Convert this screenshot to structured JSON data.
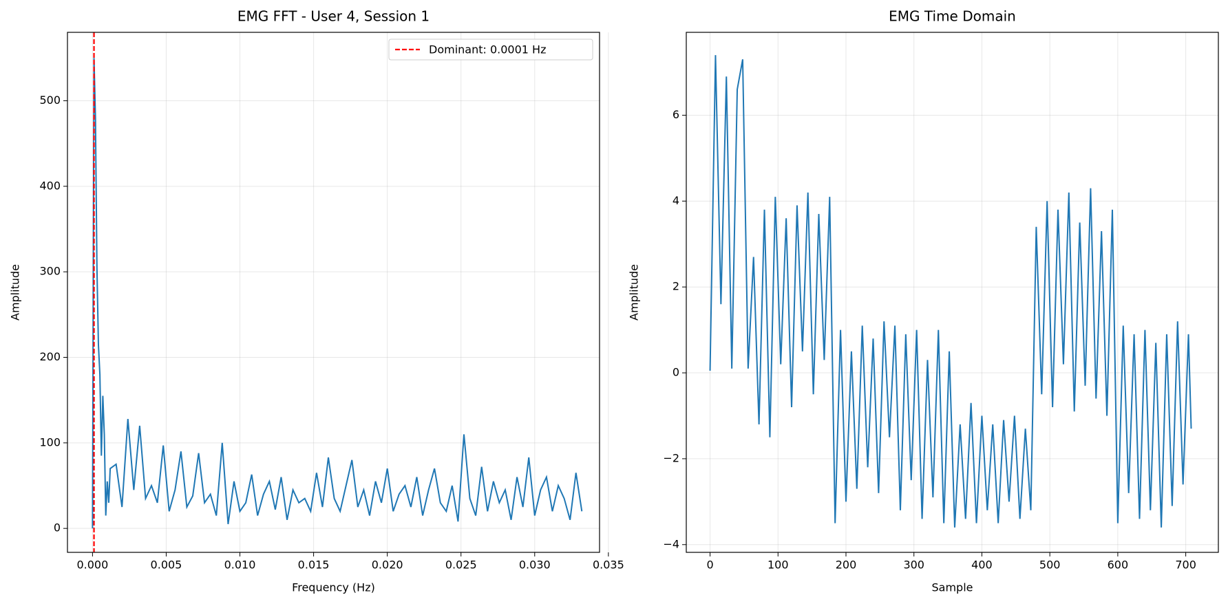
{
  "chart_data": [
    {
      "type": "line",
      "title": "EMG FFT - User 4, Session 1",
      "xlabel": "Frequency (Hz)",
      "ylabel": "Amplitude",
      "x": [
        0,
        0.0001,
        0.0002,
        0.0003,
        0.0004,
        0.0005,
        0.0006,
        0.0007,
        0.0008,
        0.0009,
        0.001,
        0.0011,
        0.0012,
        0.0016,
        0.002,
        0.0024,
        0.0028,
        0.0032,
        0.0036,
        0.004,
        0.0044,
        0.0048,
        0.0052,
        0.0056,
        0.006,
        0.0064,
        0.0068,
        0.0072,
        0.0076,
        0.008,
        0.0084,
        0.0088,
        0.0092,
        0.0096,
        0.01,
        0.0104,
        0.0108,
        0.0112,
        0.0116,
        0.012,
        0.0124,
        0.0128,
        0.0132,
        0.0136,
        0.014,
        0.0144,
        0.0148,
        0.0152,
        0.0156,
        0.016,
        0.0164,
        0.0168,
        0.0172,
        0.0176,
        0.018,
        0.0184,
        0.0188,
        0.0192,
        0.0196,
        0.02,
        0.0204,
        0.0208,
        0.0212,
        0.0216,
        0.022,
        0.0224,
        0.0228,
        0.0232,
        0.0236,
        0.024,
        0.0244,
        0.0248,
        0.0252,
        0.0256,
        0.026,
        0.0264,
        0.0268,
        0.0272,
        0.0276,
        0.028,
        0.0284,
        0.0288,
        0.0292,
        0.0296,
        0.03,
        0.0304,
        0.0308,
        0.0312,
        0.0316,
        0.032,
        0.0324,
        0.0328,
        0.0332
      ],
      "series": [
        {
          "color": "#1f77b4",
          "values": [
            0,
            550,
            480,
            305,
            215,
            180,
            85,
            155,
            110,
            15,
            55,
            30,
            70,
            75,
            25,
            128,
            45,
            120,
            35,
            50,
            30,
            97,
            20,
            45,
            90,
            25,
            38,
            88,
            30,
            40,
            15,
            100,
            5,
            55,
            20,
            30,
            63,
            15,
            40,
            55,
            22,
            60,
            10,
            45,
            30,
            35,
            20,
            65,
            25,
            83,
            35,
            20,
            50,
            80,
            25,
            45,
            15,
            55,
            30,
            70,
            20,
            40,
            50,
            25,
            60,
            15,
            45,
            70,
            30,
            20,
            50,
            8,
            110,
            35,
            15,
            72,
            20,
            55,
            30,
            45,
            10,
            60,
            25,
            83,
            15,
            45,
            60,
            20,
            50,
            35,
            10,
            65,
            20
          ]
        }
      ],
      "vline": {
        "x": 0.0001,
        "label": "Dominant: 0.0001 Hz",
        "color": "#ff0000"
      },
      "legend": "upper right",
      "xlim": [
        -0.0017,
        0.0344
      ],
      "ylim": [
        -28,
        580
      ],
      "xticks": [
        {
          "value": 0,
          "label": "0.000"
        },
        {
          "value": 0.005,
          "label": "0.005"
        },
        {
          "value": 0.01,
          "label": "0.010"
        },
        {
          "value": 0.015,
          "label": "0.015"
        },
        {
          "value": 0.02,
          "label": "0.020"
        },
        {
          "value": 0.025,
          "label": "0.025"
        },
        {
          "value": 0.03,
          "label": "0.030"
        },
        {
          "value": 0.035,
          "label": "0.035"
        }
      ],
      "yticks": [
        0,
        100,
        200,
        300,
        400,
        500
      ],
      "grid": true
    },
    {
      "type": "line",
      "title": "EMG Time Domain",
      "xlabel": "Sample",
      "ylabel": "Amplitude",
      "x": [
        0,
        8,
        16,
        24,
        32,
        40,
        48,
        56,
        64,
        72,
        80,
        88,
        96,
        104,
        112,
        120,
        128,
        136,
        144,
        152,
        160,
        168,
        176,
        184,
        192,
        200,
        208,
        216,
        224,
        232,
        240,
        248,
        256,
        264,
        272,
        280,
        288,
        296,
        304,
        312,
        320,
        328,
        336,
        344,
        352,
        360,
        368,
        376,
        384,
        392,
        400,
        408,
        416,
        424,
        432,
        440,
        448,
        456,
        464,
        472,
        480,
        488,
        496,
        504,
        512,
        520,
        528,
        536,
        544,
        552,
        560,
        568,
        576,
        584,
        592,
        600,
        608,
        616,
        624,
        632,
        640,
        648,
        656,
        664,
        672,
        680,
        688,
        696,
        704,
        708
      ],
      "series": [
        {
          "color": "#1f77b4",
          "values": [
            0.05,
            7.4,
            1.6,
            6.9,
            0.1,
            6.6,
            7.3,
            0.1,
            2.7,
            -1.2,
            3.8,
            -1.5,
            4.1,
            0.2,
            3.6,
            -0.8,
            3.9,
            0.5,
            4.2,
            -0.5,
            3.7,
            0.3,
            4.1,
            -3.5,
            1.0,
            -3.0,
            0.5,
            -2.7,
            1.1,
            -2.2,
            0.8,
            -2.8,
            1.2,
            -1.5,
            1.1,
            -3.2,
            0.9,
            -2.5,
            1.0,
            -3.4,
            0.3,
            -2.9,
            1.0,
            -3.5,
            0.5,
            -3.6,
            -1.2,
            -3.4,
            -0.7,
            -3.5,
            -1.0,
            -3.2,
            -1.2,
            -3.5,
            -1.1,
            -3.0,
            -1.0,
            -3.4,
            -1.3,
            -3.2,
            3.4,
            -0.5,
            4.0,
            -0.8,
            3.8,
            0.2,
            4.2,
            -0.9,
            3.5,
            -0.3,
            4.3,
            -0.6,
            3.3,
            -1.0,
            3.8,
            -3.5,
            1.1,
            -2.8,
            0.9,
            -3.4,
            1.0,
            -3.2,
            0.7,
            -3.6,
            0.9,
            -3.1,
            1.2,
            -2.6,
            0.9,
            -1.3
          ]
        }
      ],
      "xlim": [
        -35,
        748
      ],
      "ylim": [
        -4.18,
        7.93
      ],
      "xticks": [
        0,
        100,
        200,
        300,
        400,
        500,
        600,
        700
      ],
      "yticks": [
        {
          "value": -4,
          "label": "−4"
        },
        {
          "value": -2,
          "label": "−2"
        },
        {
          "value": 0,
          "label": "0"
        },
        {
          "value": 2,
          "label": "2"
        },
        {
          "value": 4,
          "label": "4"
        },
        {
          "value": 6,
          "label": "6"
        }
      ],
      "grid": true
    }
  ]
}
